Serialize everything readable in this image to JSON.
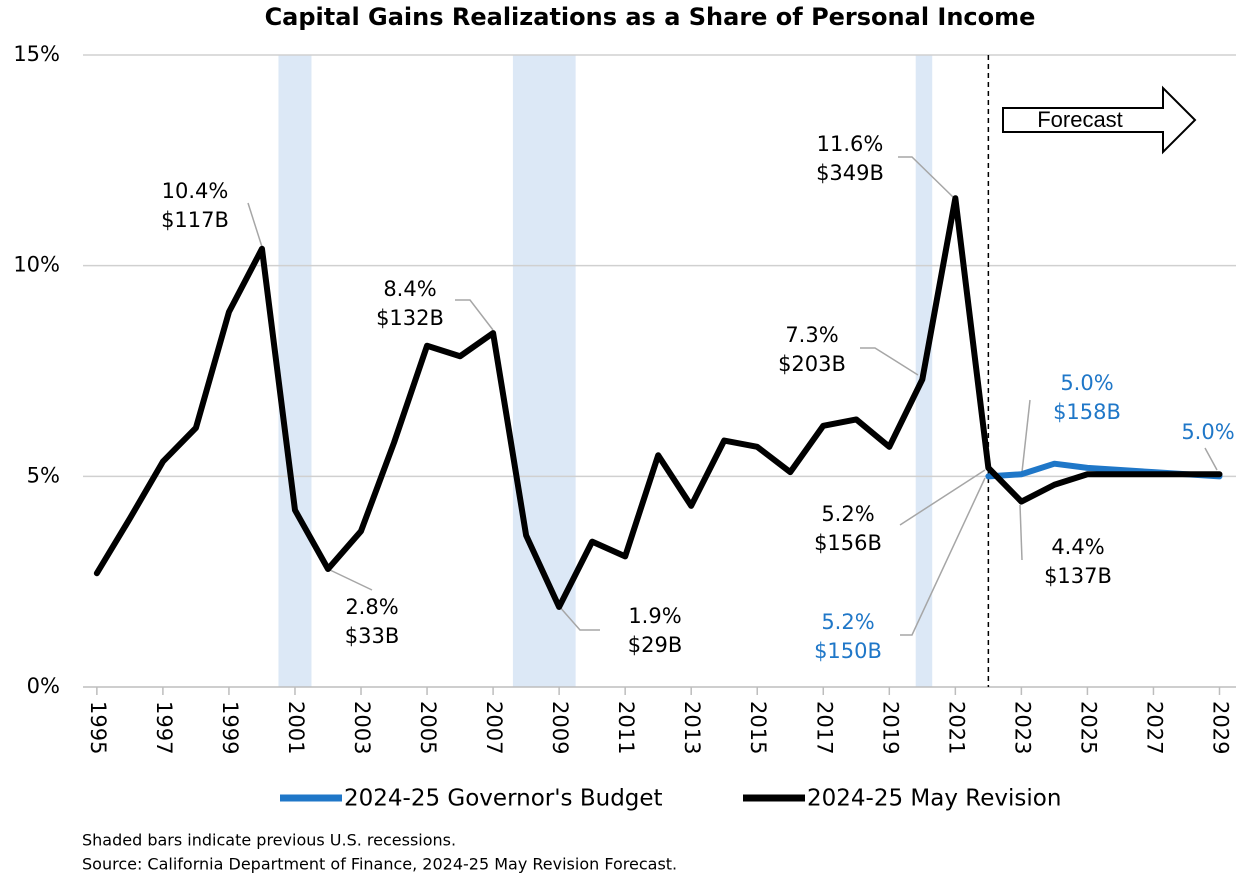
{
  "chart_data": {
    "type": "line",
    "title": "Capital Gains Realizations as a Share of Personal Income",
    "x": [
      1995,
      1996,
      1997,
      1998,
      1999,
      2000,
      2001,
      2002,
      2003,
      2004,
      2005,
      2006,
      2007,
      2008,
      2009,
      2010,
      2011,
      2012,
      2013,
      2014,
      2015,
      2016,
      2017,
      2018,
      2019,
      2020,
      2021,
      2022,
      2023,
      2024,
      2025,
      2026,
      2027,
      2028,
      2029
    ],
    "series": [
      {
        "name": "2024-25 Governor's Budget",
        "color": "#1f77c8",
        "values": [
          null,
          null,
          null,
          null,
          null,
          null,
          null,
          null,
          null,
          null,
          null,
          null,
          null,
          null,
          null,
          null,
          null,
          null,
          null,
          null,
          null,
          null,
          null,
          null,
          null,
          null,
          null,
          5.0,
          5.05,
          5.3,
          5.2,
          5.15,
          5.1,
          5.05,
          5.0
        ]
      },
      {
        "name": "2024-25 May Revision",
        "color": "#000000",
        "values": [
          2.7,
          4.0,
          5.35,
          6.15,
          8.9,
          10.4,
          4.2,
          2.8,
          3.7,
          5.8,
          8.1,
          7.85,
          8.4,
          3.6,
          1.9,
          3.45,
          3.1,
          5.5,
          4.3,
          5.85,
          5.7,
          5.1,
          6.2,
          6.35,
          5.7,
          7.3,
          11.6,
          5.2,
          4.4,
          4.8,
          5.05,
          5.05,
          5.05,
          5.05,
          5.05
        ]
      }
    ],
    "xlim": [
      1994.58,
      2029.5
    ],
    "xticks": [
      1995,
      1997,
      1999,
      2001,
      2003,
      2005,
      2007,
      2009,
      2011,
      2013,
      2015,
      2017,
      2019,
      2021,
      2023,
      2025,
      2027,
      2029
    ],
    "ylim": [
      0,
      15
    ],
    "yticks": [
      {
        "value": 0,
        "label": "0%"
      },
      {
        "value": 5,
        "label": "5%"
      },
      {
        "value": 10,
        "label": "10%"
      },
      {
        "value": 15,
        "label": "15%"
      }
    ],
    "grid": true,
    "shaded_ranges": [
      [
        2000.5,
        2001.5
      ],
      [
        2007.6,
        2009.5
      ],
      [
        2019.8,
        2020.3
      ]
    ],
    "shade_color": "#dce8f6",
    "forecast_start": 2022.0,
    "forecast_label": "Forecast",
    "annotations": [
      {
        "lines": [
          "10.4%",
          "$117B"
        ]
      },
      {
        "lines": [
          "8.4%",
          "$132B"
        ]
      },
      {
        "lines": [
          "2.8%",
          "$33B"
        ]
      },
      {
        "lines": [
          "1.9%",
          "$29B"
        ]
      },
      {
        "lines": [
          "7.3%",
          "$203B"
        ]
      },
      {
        "lines": [
          "11.6%",
          "$349B"
        ]
      },
      {
        "lines": [
          "5.2%",
          "$156B"
        ]
      },
      {
        "lines": [
          "5.2%",
          "$150B"
        ]
      },
      {
        "lines": [
          "5.0%",
          "$158B"
        ]
      },
      {
        "lines": [
          "4.4%",
          "$137B"
        ]
      },
      {
        "lines": [
          "5.0%"
        ]
      }
    ],
    "footnotes": [
      "Shaded bars indicate previous U.S. recessions.",
      "Source: California Department of Finance, 2024-25 May Revision Forecast."
    ]
  }
}
